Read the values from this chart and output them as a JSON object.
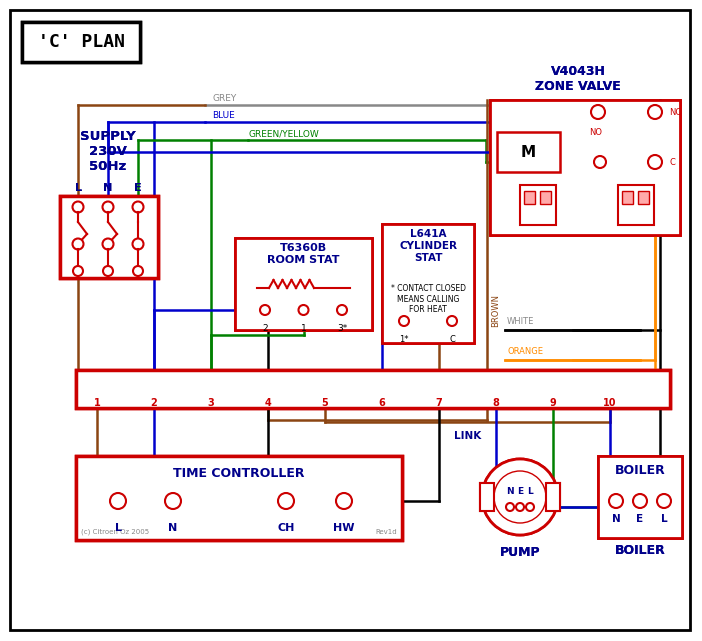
{
  "bg": "#ffffff",
  "black": "#000000",
  "red": "#cc0000",
  "blue": "#0000cc",
  "green": "#008000",
  "grey": "#888888",
  "brown": "#8B4513",
  "orange": "#FF8C00",
  "dblue": "#00008B",
  "title": "'C' PLAN",
  "zone_valve_label": "V4043H\nZONE VALVE",
  "supply_label": "SUPPLY\n230V\n50Hz",
  "room_stat_label": "T6360B\nROOM STAT",
  "cyl_stat_label": "L641A\nCYLINDER\nSTAT",
  "tc_label": "TIME CONTROLLER",
  "pump_label": "PUMP",
  "boiler_label": "BOILER",
  "link_label": "LINK",
  "note": "* CONTACT CLOSED\nMEANS CALLING\nFOR HEAT",
  "copyright": "(c) Citroen Oz 2005",
  "rev": "Rev1d",
  "wire_grey": "GREY",
  "wire_blue": "BLUE",
  "wire_gy": "GREEN/YELLOW",
  "wire_brown": "BROWN",
  "wire_white": "WHITE",
  "wire_orange": "ORANGE",
  "terminals": [
    "1",
    "2",
    "3",
    "4",
    "5",
    "6",
    "7",
    "8",
    "9",
    "10"
  ]
}
